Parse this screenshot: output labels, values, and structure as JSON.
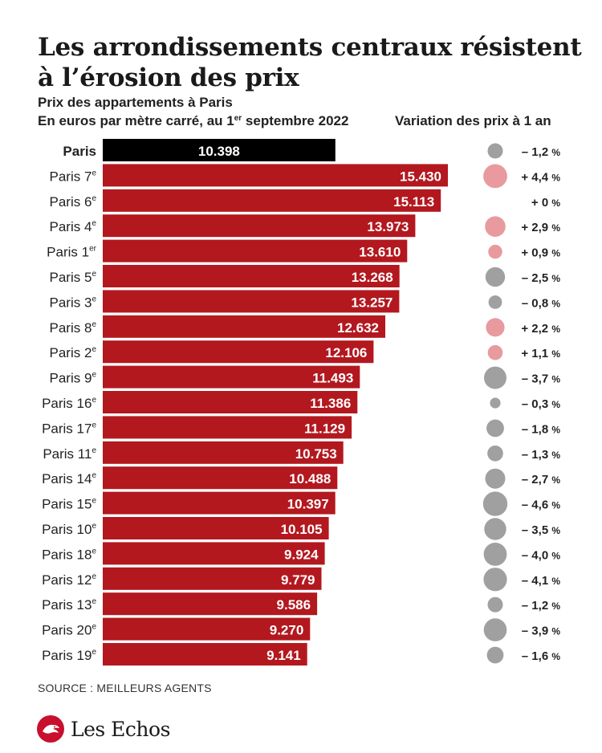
{
  "title": "Les arrondissements centraux résistent à l’érosion des prix",
  "subtitle_line1": "Prix des appartements à Paris",
  "subtitle_line2_pre": "En euros par mètre carré, au 1",
  "subtitle_line2_sup": "er",
  "subtitle_line2_post": " septembre 2022",
  "variation_header": "Variation des prix à 1 an",
  "source": "SOURCE : MEILLEURS AGENTS",
  "brand": "Les Echos",
  "colors": {
    "bar": "#b3181f",
    "total_bar": "#000000",
    "dot_positive": "#e89a9e",
    "dot_negative": "#a0a0a0"
  },
  "chart_data": {
    "type": "bar",
    "orientation": "horizontal",
    "unit": "euros par mètre carré",
    "categories": [
      {
        "label": "Paris",
        "sup": ""
      },
      {
        "label": "Paris 7",
        "sup": "e"
      },
      {
        "label": "Paris 6",
        "sup": "e"
      },
      {
        "label": "Paris 4",
        "sup": "e"
      },
      {
        "label": "Paris 1",
        "sup": "er"
      },
      {
        "label": "Paris 5",
        "sup": "e"
      },
      {
        "label": "Paris 3",
        "sup": "e"
      },
      {
        "label": "Paris 8",
        "sup": "e"
      },
      {
        "label": "Paris 2",
        "sup": "e"
      },
      {
        "label": "Paris 9",
        "sup": "e"
      },
      {
        "label": "Paris 16",
        "sup": "e"
      },
      {
        "label": "Paris 17",
        "sup": "e"
      },
      {
        "label": "Paris 11",
        "sup": "e"
      },
      {
        "label": "Paris 14",
        "sup": "e"
      },
      {
        "label": "Paris 15",
        "sup": "e"
      },
      {
        "label": "Paris 10",
        "sup": "e"
      },
      {
        "label": "Paris 18",
        "sup": "e"
      },
      {
        "label": "Paris 12",
        "sup": "e"
      },
      {
        "label": "Paris 13",
        "sup": "e"
      },
      {
        "label": "Paris 20",
        "sup": "e"
      },
      {
        "label": "Paris 19",
        "sup": "e"
      }
    ],
    "values": [
      10398,
      15430,
      15113,
      13973,
      13610,
      13268,
      13257,
      12632,
      12106,
      11493,
      11386,
      11129,
      10753,
      10488,
      10397,
      10105,
      9924,
      9779,
      9586,
      9270,
      9141
    ],
    "value_labels": [
      "10.398",
      "15.430",
      "15.113",
      "13.973",
      "13.610",
      "13.268",
      "13.257",
      "12.632",
      "12.106",
      "11.493",
      "11.386",
      "11.129",
      "10.753",
      "10.488",
      "10.397",
      "10.105",
      "9.924",
      "9.779",
      "9.586",
      "9.270",
      "9.141"
    ],
    "variation": [
      -1.2,
      4.4,
      0,
      2.9,
      0.9,
      -2.5,
      -0.8,
      2.2,
      1.1,
      -3.7,
      -0.3,
      -1.8,
      -1.3,
      -2.7,
      -4.6,
      -3.5,
      -4.0,
      -4.1,
      -1.2,
      -3.9,
      -1.6
    ],
    "variation_labels": [
      "– 1,2",
      "+ 4,4",
      "+ 0",
      "+ 2,9",
      "+ 0,9",
      "– 2,5",
      "– 0,8",
      "+ 2,2",
      "+ 1,1",
      "– 3,7",
      "– 0,3",
      "– 1,8",
      "– 1,3",
      "– 2,7",
      "– 4,6",
      "– 3,5",
      "– 4,0",
      "– 4,1",
      "– 1,2",
      "– 3,9",
      "– 1,6"
    ],
    "variation_unit": "%",
    "highlight_first": true
  }
}
